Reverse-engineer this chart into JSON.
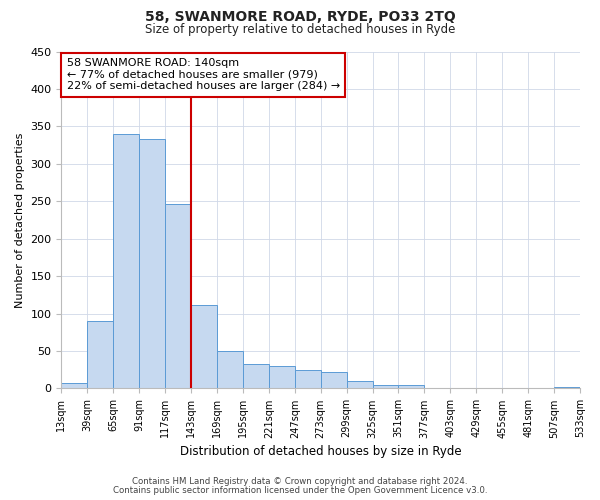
{
  "title": "58, SWANMORE ROAD, RYDE, PO33 2TQ",
  "subtitle": "Size of property relative to detached houses in Ryde",
  "xlabel": "Distribution of detached houses by size in Ryde",
  "ylabel": "Number of detached properties",
  "bar_values": [
    7,
    90,
    340,
    333,
    247,
    112,
    50,
    33,
    30,
    25,
    22,
    10,
    5,
    4,
    1,
    1,
    0,
    1,
    0,
    2
  ],
  "bin_labels": [
    "13sqm",
    "39sqm",
    "65sqm",
    "91sqm",
    "117sqm",
    "143sqm",
    "169sqm",
    "195sqm",
    "221sqm",
    "247sqm",
    "273sqm",
    "299sqm",
    "325sqm",
    "351sqm",
    "377sqm",
    "403sqm",
    "429sqm",
    "455sqm",
    "481sqm",
    "507sqm",
    "533sqm"
  ],
  "bar_color": "#c6d9f0",
  "bar_edge_color": "#5b9bd5",
  "vline_pos": 5.0,
  "vline_color": "#cc0000",
  "annotation_text": "58 SWANMORE ROAD: 140sqm\n← 77% of detached houses are smaller (979)\n22% of semi-detached houses are larger (284) →",
  "annotation_box_color": "#ffffff",
  "annotation_box_edge": "#cc0000",
  "ylim": [
    0,
    450
  ],
  "yticks": [
    0,
    50,
    100,
    150,
    200,
    250,
    300,
    350,
    400,
    450
  ],
  "footer1": "Contains HM Land Registry data © Crown copyright and database right 2024.",
  "footer2": "Contains public sector information licensed under the Open Government Licence v3.0.",
  "background_color": "#ffffff",
  "grid_color": "#d0d8e8"
}
